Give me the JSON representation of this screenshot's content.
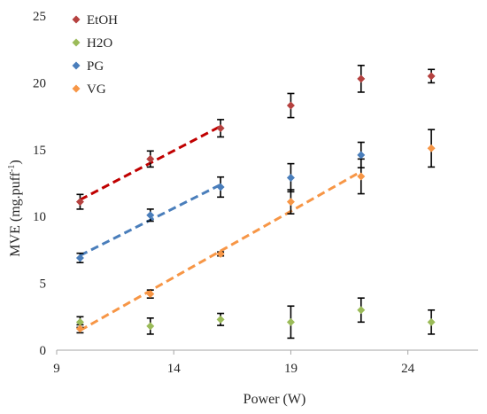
{
  "chart_data": {
    "type": "scatter",
    "xlabel": "Power (W)",
    "ylabel_main": "MVE  (mg.puff",
    "ylabel_sup": "-1",
    "ylabel_end": ")",
    "xlim": [
      9,
      27
    ],
    "ylim": [
      0,
      25
    ],
    "xticks": [
      9,
      14,
      19,
      24
    ],
    "yticks": [
      0,
      5,
      10,
      15,
      20,
      25
    ],
    "grid": false,
    "legend_position": "top-left",
    "series": [
      {
        "name": "EtOH",
        "color": "#b5413f",
        "trend_color": "#c00000",
        "x": [
          10,
          13,
          16,
          19,
          22,
          25
        ],
        "y": [
          11.1,
          14.3,
          16.6,
          18.3,
          20.3,
          20.5
        ],
        "err": [
          0.55,
          0.6,
          0.65,
          0.9,
          1.0,
          0.5
        ],
        "trend_x": [
          10,
          16
        ]
      },
      {
        "name": "H2O",
        "color": "#9bbb59",
        "x": [
          10,
          13,
          16,
          19,
          22,
          25
        ],
        "y": [
          2.1,
          1.8,
          2.3,
          2.1,
          3.0,
          2.1
        ],
        "err": [
          0.4,
          0.6,
          0.45,
          1.2,
          0.9,
          0.9
        ]
      },
      {
        "name": "PG",
        "color": "#4a7ebb",
        "trend_color": "#4a7ebb",
        "x": [
          10,
          13,
          16,
          19,
          22
        ],
        "y": [
          6.9,
          10.1,
          12.2,
          12.9,
          14.6
        ],
        "err": [
          0.35,
          0.45,
          0.75,
          1.05,
          0.95
        ],
        "trend_x": [
          10,
          16
        ]
      },
      {
        "name": "VG",
        "color": "#f79646",
        "trend_color": "#f79646",
        "x": [
          10,
          13,
          16,
          19,
          22,
          25
        ],
        "y": [
          1.6,
          4.2,
          7.2,
          11.1,
          13.0,
          15.1
        ],
        "err": [
          0.3,
          0.3,
          0.15,
          0.9,
          1.3,
          1.4
        ],
        "trend_x": [
          10,
          22
        ]
      }
    ]
  }
}
